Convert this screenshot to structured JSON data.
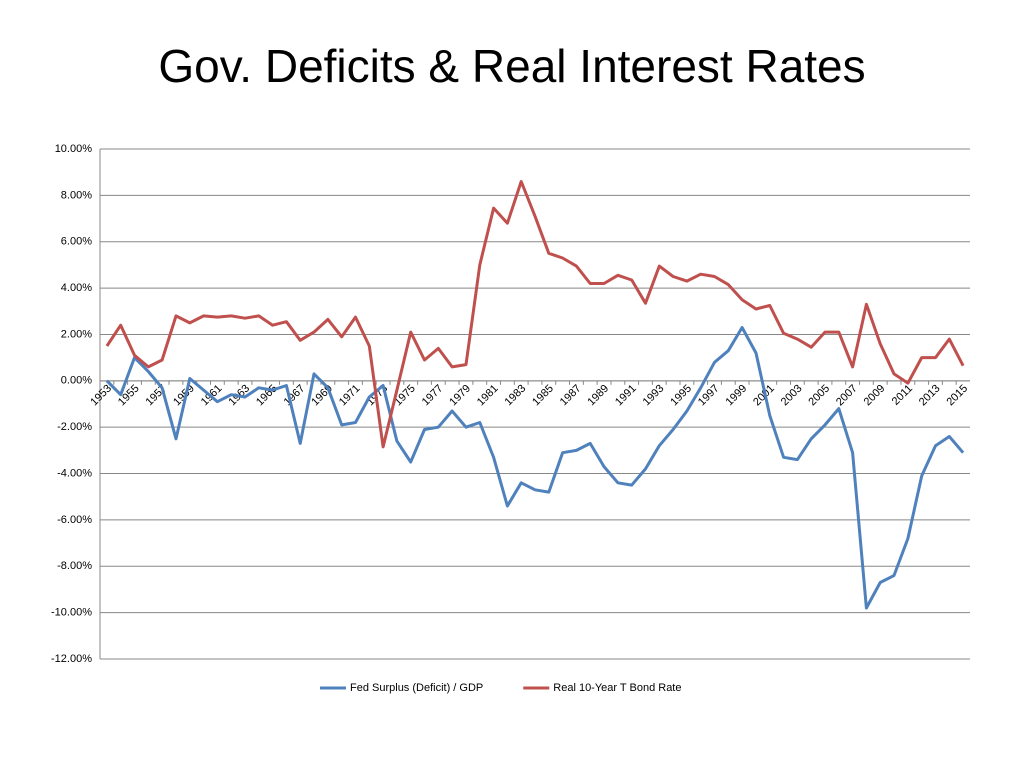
{
  "chart_data": {
    "type": "line",
    "title": "Gov. Deficits & Real Interest Rates",
    "categories": [
      "1953",
      null,
      "1955",
      null,
      "1957",
      null,
      "1959",
      null,
      "1961",
      null,
      "1963",
      null,
      "1965",
      null,
      "1967",
      null,
      "1969",
      null,
      "1971",
      null,
      "1973",
      null,
      "1975",
      null,
      "1977",
      null,
      "1979",
      null,
      "1981",
      null,
      "1983",
      null,
      "1985",
      null,
      "1987",
      null,
      "1989",
      null,
      "1991",
      null,
      "1993",
      null,
      "1995",
      null,
      "1997",
      null,
      "1999",
      null,
      "2001",
      null,
      "2003",
      null,
      "2005",
      null,
      "2007",
      null,
      "2009",
      null,
      "2011",
      null,
      "2013",
      null,
      "2015"
    ],
    "series": [
      {
        "name": "Fed Surplus (Deficit) / GDP",
        "color": "#4f81bd",
        "values": [
          0.0,
          -0.6,
          1.0,
          0.4,
          -0.3,
          -2.5,
          0.1,
          -0.4,
          -0.9,
          -0.6,
          -0.7,
          -0.3,
          -0.4,
          -0.2,
          -2.7,
          0.3,
          -0.3,
          -1.9,
          -1.8,
          -0.7,
          -0.2,
          -2.6,
          -3.5,
          -2.1,
          -2.0,
          -1.3,
          -2.0,
          -1.8,
          -3.3,
          -5.4,
          -4.4,
          -4.7,
          -4.8,
          -3.1,
          -3.0,
          -2.7,
          -3.7,
          -4.4,
          -4.5,
          -3.8,
          -2.8,
          -2.1,
          -1.3,
          -0.3,
          0.8,
          1.3,
          2.3,
          1.2,
          -1.5,
          -3.3,
          -3.4,
          -2.5,
          -1.9,
          -1.2,
          -3.1,
          -9.8,
          -8.7,
          -8.4,
          -6.8,
          -4.1,
          -2.8,
          -2.4,
          -3.1
        ]
      },
      {
        "name": "Real 10-Year T Bond Rate",
        "color": "#c0504d",
        "values": [
          1.5,
          2.4,
          1.1,
          0.6,
          0.9,
          2.8,
          2.5,
          2.8,
          2.75,
          2.8,
          2.7,
          2.8,
          2.4,
          2.55,
          1.75,
          2.1,
          2.65,
          1.9,
          2.75,
          1.5,
          -2.85,
          -0.4,
          2.1,
          0.9,
          1.4,
          0.6,
          0.7,
          5.0,
          7.45,
          6.8,
          8.6,
          7.1,
          5.5,
          5.3,
          4.95,
          4.2,
          4.2,
          4.55,
          4.35,
          3.35,
          4.95,
          4.5,
          4.3,
          4.6,
          4.5,
          4.15,
          3.5,
          3.1,
          3.25,
          2.05,
          1.8,
          1.45,
          2.1,
          2.1,
          0.6,
          3.3,
          1.6,
          0.3,
          -0.1,
          1.0,
          1.0,
          1.8,
          0.65
        ]
      }
    ],
    "ylim": [
      -12,
      10
    ],
    "yticks": [
      {
        "value": -12,
        "label": "-12.00%"
      },
      {
        "value": -10,
        "label": "-10.00%"
      },
      {
        "value": -8,
        "label": "-8.00%"
      },
      {
        "value": -6,
        "label": "-6.00%"
      },
      {
        "value": -4,
        "label": "-4.00%"
      },
      {
        "value": -2,
        "label": "-2.00%"
      },
      {
        "value": 0,
        "label": "0.00%"
      },
      {
        "value": 2,
        "label": "2.00%"
      },
      {
        "value": 4,
        "label": "4.00%"
      },
      {
        "value": 6,
        "label": "6.00%"
      },
      {
        "value": 8,
        "label": "8.00%"
      },
      {
        "value": 10,
        "label": "10.00%"
      }
    ],
    "grid": true,
    "legend": "bottom"
  }
}
